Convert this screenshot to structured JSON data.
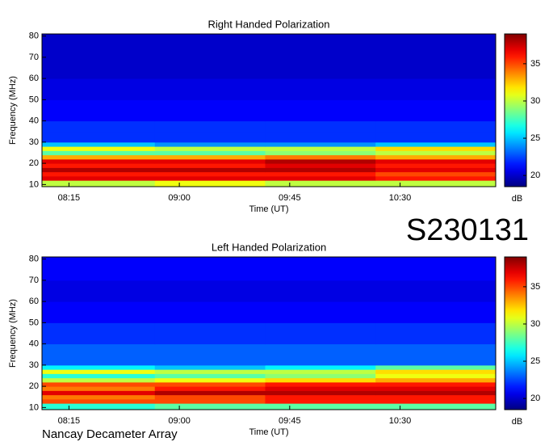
{
  "event_id": "S230131",
  "observatory": "Nancay Decameter Array",
  "chart_data": [
    {
      "type": "heatmap",
      "title": "Right Handed Polarization",
      "x_label": "Time (UT)",
      "y_label": "Frequency (MHz)",
      "xlim": [
        484,
        669
      ],
      "ylim": [
        9,
        81
      ],
      "xticks": [
        {
          "value": 495,
          "label": "08:15"
        },
        {
          "value": 540,
          "label": "09:00"
        },
        {
          "value": 585,
          "label": "09:45"
        },
        {
          "value": 630,
          "label": "10:30"
        }
      ],
      "yticks": [
        10,
        20,
        30,
        40,
        50,
        60,
        70,
        80
      ],
      "x_bins": [
        484,
        530,
        575,
        620,
        669
      ],
      "y_bins": [
        9,
        12,
        14,
        16,
        18,
        20,
        22,
        24,
        26,
        28,
        30,
        35,
        40,
        50,
        60,
        70,
        81
      ],
      "z": [
        [
          30,
          31,
          30,
          30
        ],
        [
          37,
          37,
          37,
          36
        ],
        [
          36,
          36,
          36,
          35
        ],
        [
          38,
          38,
          38,
          37
        ],
        [
          36,
          36,
          37,
          36
        ],
        [
          37,
          37,
          38,
          37
        ],
        [
          33,
          33,
          34,
          33
        ],
        [
          28,
          28,
          29,
          30
        ],
        [
          31,
          30,
          30,
          32
        ],
        [
          25,
          24,
          24,
          25
        ],
        [
          22,
          22,
          22,
          22
        ],
        [
          22,
          22,
          22,
          22
        ],
        [
          21,
          21,
          21,
          21
        ],
        [
          20.5,
          20.5,
          20.5,
          20.5
        ],
        [
          20,
          20,
          20,
          20
        ],
        [
          20,
          20,
          20,
          20
        ]
      ],
      "colorbar": {
        "lim": [
          18.5,
          39
        ],
        "ticks": [
          20,
          25,
          30,
          35
        ],
        "label": "dB"
      }
    },
    {
      "type": "heatmap",
      "title": "Left Handed Polarization",
      "x_label": "Time (UT)",
      "y_label": "Frequency (MHz)",
      "xlim": [
        484,
        669
      ],
      "ylim": [
        9,
        81
      ],
      "xticks": [
        {
          "value": 495,
          "label": "08:15"
        },
        {
          "value": 540,
          "label": "09:00"
        },
        {
          "value": 585,
          "label": "09:45"
        },
        {
          "value": 630,
          "label": "10:30"
        }
      ],
      "yticks": [
        10,
        20,
        30,
        40,
        50,
        60,
        70,
        80
      ],
      "x_bins": [
        484,
        530,
        575,
        620,
        669
      ],
      "y_bins": [
        9,
        12,
        14,
        16,
        18,
        20,
        22,
        24,
        26,
        28,
        30,
        35,
        40,
        50,
        60,
        70,
        81
      ],
      "z": [
        [
          27,
          28,
          28,
          28
        ],
        [
          35,
          35,
          36,
          36
        ],
        [
          34,
          35,
          36,
          36
        ],
        [
          37,
          38,
          38,
          38
        ],
        [
          34,
          36,
          37,
          37
        ],
        [
          35,
          35,
          36,
          36
        ],
        [
          30,
          31,
          32,
          33
        ],
        [
          27,
          28,
          29,
          31
        ],
        [
          31,
          30,
          30,
          32
        ],
        [
          26,
          25,
          26,
          28
        ],
        [
          23,
          23,
          23,
          23
        ],
        [
          23,
          23,
          23,
          23
        ],
        [
          22,
          22,
          22,
          22
        ],
        [
          21,
          21,
          21,
          21
        ],
        [
          20.5,
          20.5,
          20.5,
          20.5
        ],
        [
          21,
          21,
          21,
          21
        ]
      ],
      "colorbar": {
        "lim": [
          18.5,
          39
        ],
        "ticks": [
          20,
          25,
          30,
          35
        ],
        "label": "dB"
      }
    }
  ]
}
